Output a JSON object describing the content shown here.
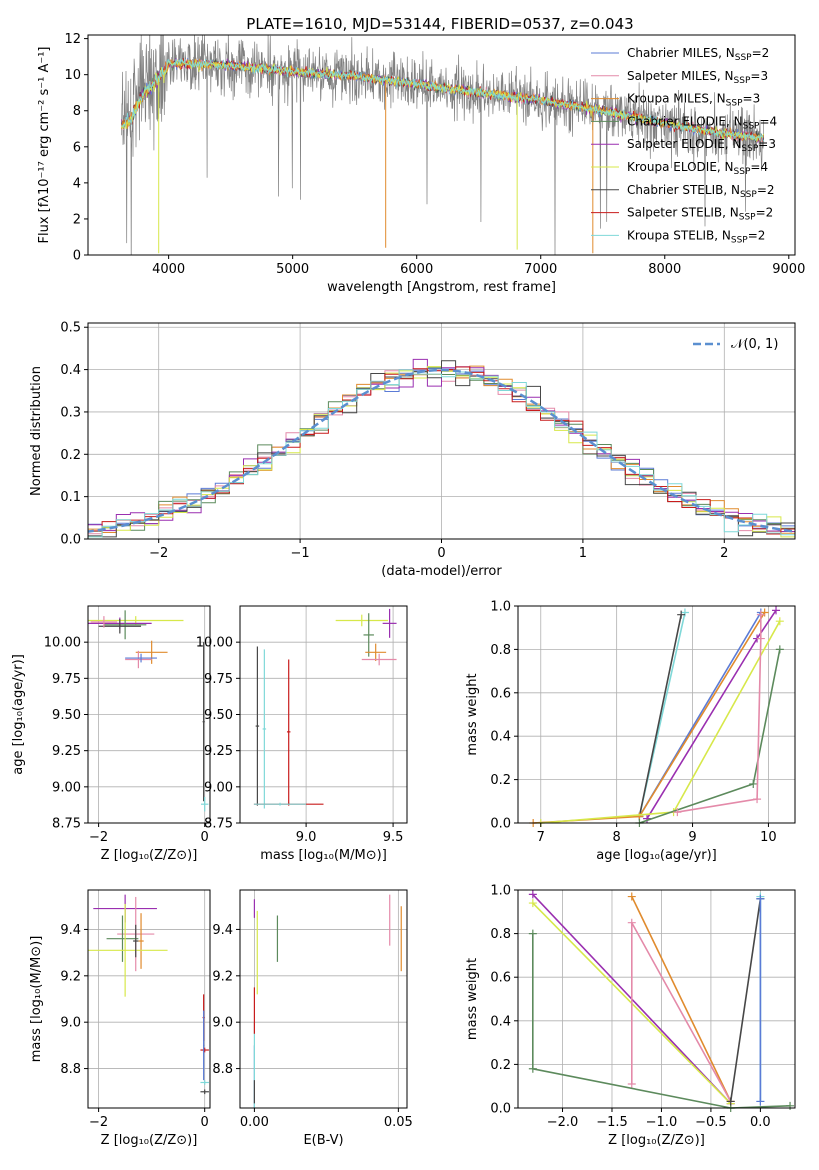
{
  "colors": {
    "chabrier_miles": "#5b7bd6",
    "salpeter_miles": "#e48aa9",
    "kroupa_miles": "#e08b2e",
    "chabrier_elodie": "#5c8a5c",
    "salpeter_elodie": "#9a2fb0",
    "kroupa_elodie": "#d7e84a",
    "chabrier_stelib": "#474747",
    "salpeter_stelib": "#c81c1c",
    "kroupa_stelib": "#7fd8d8",
    "observed": "#808080",
    "grid": "#b0b0b0",
    "normal_curve": "#5b8fd0"
  },
  "chart_data": [
    {
      "id": "spectrum",
      "type": "line",
      "title": "PLATE=1610, MJD=53144, FIBERID=0537, z=0.043",
      "xlabel": "wavelength [Angstrom, rest frame]",
      "ylabel": "Flux [fλ10⁻¹⁷ erg cm⁻² s⁻¹ A⁻¹]",
      "xlim": [
        3350,
        9050
      ],
      "ylim": [
        0,
        12.2
      ],
      "xticks": [
        "4000",
        "5000",
        "6000",
        "7000",
        "8000",
        "9000"
      ],
      "yticks": [
        "0",
        "2",
        "4",
        "6",
        "8",
        "10",
        "12"
      ],
      "legend_position": "right",
      "legend": [
        {
          "model": "Chabrier MILES",
          "nssp": "2"
        },
        {
          "model": "Salpeter MILES",
          "nssp": "3"
        },
        {
          "model": "Kroupa MILES",
          "nssp": "3"
        },
        {
          "model": "Chabrier ELODIE",
          "nssp": "4"
        },
        {
          "model": "Salpeter ELODIE",
          "nssp": "3"
        },
        {
          "model": "Kroupa ELODIE",
          "nssp": "4"
        },
        {
          "model": "Chabrier STELIB",
          "nssp": "2"
        },
        {
          "model": "Salpeter STELIB",
          "nssp": "2"
        },
        {
          "model": "Kroupa STELIB",
          "nssp": "2"
        }
      ],
      "continuum": {
        "x": [
          3620,
          3700,
          3800,
          3900,
          4000,
          4200,
          4500,
          5000,
          5500,
          6000,
          6500,
          7000,
          7500,
          8000,
          8500,
          8800
        ],
        "y": [
          7.2,
          7.6,
          9.0,
          9.6,
          10.6,
          10.6,
          10.5,
          10.2,
          9.9,
          9.5,
          9.0,
          8.6,
          8.0,
          7.3,
          6.7,
          6.5
        ]
      },
      "spikes": [
        {
          "x": 3920,
          "y": 0.1
        },
        {
          "x": 5750,
          "y": 0.4
        },
        {
          "x": 6810,
          "y": 0.3
        },
        {
          "x": 7420,
          "y": 0.1
        }
      ]
    },
    {
      "id": "residuals",
      "type": "line",
      "xlabel": "(data-model)/error",
      "ylabel": "Normed distribution",
      "xlim": [
        -2.5,
        2.5
      ],
      "ylim": [
        0,
        0.51
      ],
      "xticks": [
        "−2",
        "−1",
        "0",
        "1",
        "2"
      ],
      "yticks": [
        "0.0",
        "0.1",
        "0.2",
        "0.3",
        "0.4",
        "0.5"
      ],
      "legend": "𝒩(0, 1)",
      "legend_position": "top-right",
      "bin_width": 0.1
    },
    {
      "id": "age-vs-z",
      "type": "scatter",
      "xlabel": "Z [log₁₀(Z/Z⊙)]",
      "ylabel": "age  [log₁₀(age/yr)]",
      "xlim": [
        -2.2,
        0.1
      ],
      "ylim": [
        8.75,
        10.25
      ],
      "xticks": [
        "−2",
        "0"
      ],
      "yticks": [
        "8.75",
        "9.00",
        "9.25",
        "9.50",
        "9.75",
        "10.00"
      ],
      "points": [
        {
          "s": "kroupa_elodie",
          "x": -1.3,
          "y": 10.15,
          "xe": 0.9,
          "ye": 0.03
        },
        {
          "s": "salpeter_elodie",
          "x": -1.6,
          "y": 10.13,
          "xe": 0.6,
          "ye": 0.04
        },
        {
          "s": "chabrier_elodie",
          "x": -1.5,
          "y": 10.12,
          "xe": 0.4,
          "ye": 0.1
        },
        {
          "s": "chabrier_stelib",
          "x": -1.6,
          "y": 10.11,
          "xe": 0.4,
          "ye": 0.05
        },
        {
          "s": "salpeter_miles",
          "x": -1.9,
          "y": 10.14,
          "xe": 0.25,
          "ye": 0.04
        },
        {
          "s": "kroupa_miles",
          "x": -1.0,
          "y": 9.93,
          "xe": 0.3,
          "ye": 0.08
        },
        {
          "s": "salpeter_miles",
          "x": -1.25,
          "y": 9.88,
          "xe": 0.25,
          "ye": 0.06
        },
        {
          "s": "chabrier_miles",
          "x": -1.2,
          "y": 9.89,
          "xe": 0.3,
          "ye": 0.03
        },
        {
          "s": "chabrier_stelib",
          "x": -0.02,
          "y": 9.45,
          "xe": 0.02,
          "ye": 0.55
        },
        {
          "s": "kroupa_stelib",
          "x": 0.0,
          "y": 8.88,
          "xe": 0.07,
          "ye": 0.05
        }
      ]
    },
    {
      "id": "age-vs-mass",
      "type": "scatter",
      "xlabel": "mass [log₁₀(M/M⊙)]",
      "ylabel": "",
      "xlim": [
        8.62,
        9.58
      ],
      "ylim": [
        8.75,
        10.25
      ],
      "xticks": [
        "9.0",
        "9.5"
      ],
      "yticks": [
        "8.75",
        "9.00",
        "9.25",
        "9.50",
        "9.75",
        "10.00"
      ],
      "points": [
        {
          "s": "kroupa_elodie",
          "x": 9.32,
          "y": 10.15,
          "xe": 0.15,
          "ye": 0.04
        },
        {
          "s": "salpeter_elodie",
          "x": 9.48,
          "y": 10.13,
          "xe": 0.04,
          "ye": 0.1
        },
        {
          "s": "chabrier_elodie",
          "x": 9.36,
          "y": 10.05,
          "xe": 0.03,
          "ye": 0.15
        },
        {
          "s": "kroupa_miles",
          "x": 9.4,
          "y": 9.93,
          "xe": 0.06,
          "ye": 0.06
        },
        {
          "s": "salpeter_miles",
          "x": 9.42,
          "y": 9.88,
          "xe": 0.1,
          "ye": 0.04
        },
        {
          "s": "chabrier_stelib",
          "x": 8.72,
          "y": 9.42,
          "xe": 0.01,
          "ye": 0.55
        },
        {
          "s": "kroupa_stelib",
          "x": 8.76,
          "y": 9.4,
          "xe": 0.01,
          "ye": 0.55
        },
        {
          "s": "salpeter_stelib",
          "x": 8.9,
          "y": 9.38,
          "xe": 0.01,
          "ye": 0.5
        },
        {
          "s": "salpeter_stelib",
          "x": 8.9,
          "y": 8.88,
          "xe": 0.2,
          "ye": 0.01
        },
        {
          "s": "kroupa_stelib",
          "x": 8.85,
          "y": 8.88,
          "xe": 0.15,
          "ye": 0.01
        }
      ]
    },
    {
      "id": "weight-vs-age",
      "type": "line",
      "xlabel": "age  [log₁₀(age/yr)]",
      "ylabel": "mass weight",
      "xlim": [
        6.7,
        10.35
      ],
      "ylim": [
        0,
        1.0
      ],
      "xticks": [
        "7",
        "8",
        "9",
        "10"
      ],
      "yticks": [
        "0.0",
        "0.2",
        "0.4",
        "0.6",
        "0.8",
        "1.0"
      ],
      "series": [
        {
          "s": "kroupa_stelib",
          "x": [
            8.3,
            8.9
          ],
          "y": [
            0.03,
            0.97
          ]
        },
        {
          "s": "chabrier_stelib",
          "x": [
            8.3,
            8.85
          ],
          "y": [
            0.03,
            0.96
          ]
        },
        {
          "s": "chabrier_miles",
          "x": [
            8.3,
            9.9
          ],
          "y": [
            0.03,
            0.97
          ]
        },
        {
          "s": "kroupa_miles",
          "x": [
            6.9,
            8.3,
            9.95
          ],
          "y": [
            0.0,
            0.03,
            0.97
          ]
        },
        {
          "s": "salpeter_elodie",
          "x": [
            8.4,
            9.85,
            10.1
          ],
          "y": [
            0.02,
            0.85,
            0.98
          ]
        },
        {
          "s": "kroupa_elodie",
          "x": [
            7.0,
            8.75,
            10.15
          ],
          "y": [
            0.0,
            0.05,
            0.93
          ]
        },
        {
          "s": "chabrier_elodie",
          "x": [
            8.3,
            9.8,
            10.15
          ],
          "y": [
            0.0,
            0.18,
            0.8
          ]
        },
        {
          "s": "salpeter_miles",
          "x": [
            8.8,
            9.85,
            9.9,
            9.9
          ],
          "y": [
            0.05,
            0.11,
            0.85,
            0.96
          ]
        }
      ]
    },
    {
      "id": "mass-vs-z",
      "type": "scatter",
      "xlabel": "Z [log₁₀(Z/Z⊙)]",
      "ylabel": "mass [log₁₀(M/M⊙)]",
      "xlim": [
        -2.2,
        0.1
      ],
      "ylim": [
        8.63,
        9.57
      ],
      "xticks": [
        "−2",
        "0"
      ],
      "yticks": [
        "8.8",
        "9.0",
        "9.2",
        "9.4"
      ],
      "points": [
        {
          "s": "salpeter_elodie",
          "x": -1.5,
          "y": 9.49,
          "xe": 0.6,
          "ye": 0.06
        },
        {
          "s": "salpeter_miles",
          "x": -1.3,
          "y": 9.38,
          "xe": 0.35,
          "ye": 0.16
        },
        {
          "s": "kroupa_miles",
          "x": -1.2,
          "y": 9.35,
          "xe": 0.05,
          "ye": 0.12
        },
        {
          "s": "chabrier_elodie",
          "x": -1.55,
          "y": 9.36,
          "xe": 0.3,
          "ye": 0.1
        },
        {
          "s": "kroupa_elodie",
          "x": -1.5,
          "y": 9.31,
          "xe": 0.8,
          "ye": 0.2
        },
        {
          "s": "chabrier_stelib",
          "x": -1.3,
          "y": 9.35,
          "xe": 0.05,
          "ye": 0.07
        },
        {
          "s": "salpeter_stelib",
          "x": -0.02,
          "y": 9.02,
          "xe": 0.02,
          "ye": 0.1
        },
        {
          "s": "salpeter_stelib",
          "x": 0.0,
          "y": 8.88,
          "xe": 0.08,
          "ye": 0.01
        },
        {
          "s": "kroupa_stelib",
          "x": 0.0,
          "y": 8.74,
          "xe": 0.08,
          "ye": 0.01
        },
        {
          "s": "chabrier_stelib",
          "x": 0.0,
          "y": 8.7,
          "xe": 0.08,
          "ye": 0.01
        },
        {
          "s": "chabrier_miles",
          "x": -0.02,
          "y": 8.9,
          "xe": 0.01,
          "ye": 0.15
        }
      ]
    },
    {
      "id": "mass-vs-ebv",
      "type": "scatter",
      "xlabel": "E(B-V)",
      "ylabel": "",
      "xlim": [
        -0.005,
        0.053
      ],
      "ylim": [
        8.63,
        9.57
      ],
      "xticks": [
        "0.00",
        "0.05"
      ],
      "yticks": [
        "8.8",
        "9.0",
        "9.2",
        "9.4"
      ],
      "points": [
        {
          "s": "salpeter_elodie",
          "x": 0.0,
          "y": 9.49,
          "xe": 0.0,
          "ye": 0.04
        },
        {
          "s": "kroupa_elodie",
          "x": 0.001,
          "y": 9.3,
          "xe": 0.0,
          "ye": 0.18
        },
        {
          "s": "chabrier_elodie",
          "x": 0.008,
          "y": 9.36,
          "xe": 0.0,
          "ye": 0.1
        },
        {
          "s": "salpeter_miles",
          "x": 0.047,
          "y": 9.44,
          "xe": 0.0,
          "ye": 0.11
        },
        {
          "s": "kroupa_miles",
          "x": 0.051,
          "y": 9.36,
          "xe": 0.0,
          "ye": 0.14
        },
        {
          "s": "chabrier_miles",
          "x": 0.0,
          "y": 8.75,
          "xe": 0.0,
          "ye": 0.15
        },
        {
          "s": "kroupa_stelib",
          "x": 0.0,
          "y": 8.8,
          "xe": 0.0,
          "ye": 0.2
        },
        {
          "s": "salpeter_stelib",
          "x": 0.0,
          "y": 9.05,
          "xe": 0.0,
          "ye": 0.1
        },
        {
          "s": "chabrier_stelib",
          "x": 0.0,
          "y": 8.7,
          "xe": 0.0,
          "ye": 0.05
        }
      ]
    },
    {
      "id": "weight-vs-z",
      "type": "line",
      "xlabel": "Z [log₁₀(Z/Z⊙)]",
      "ylabel": "mass weight",
      "xlim": [
        -2.45,
        0.35
      ],
      "ylim": [
        0,
        1.0
      ],
      "xticks": [
        "−2.0",
        "−1.5",
        "−1.0",
        "−0.5",
        "0.0"
      ],
      "yticks": [
        "0.0",
        "0.2",
        "0.4",
        "0.6",
        "0.8",
        "1.0"
      ],
      "series": [
        {
          "s": "salpeter_elodie",
          "x": [
            -2.3,
            -0.3
          ],
          "y": [
            0.98,
            0.02
          ]
        },
        {
          "s": "kroupa_elodie",
          "x": [
            -2.3,
            -0.3
          ],
          "y": [
            0.94,
            0.02
          ]
        },
        {
          "s": "kroupa_miles",
          "x": [
            -1.3,
            -0.3
          ],
          "y": [
            0.97,
            0.03
          ]
        },
        {
          "s": "salpeter_miles",
          "x": [
            -1.3,
            -1.3,
            -0.3
          ],
          "y": [
            0.11,
            0.85,
            0.03
          ]
        },
        {
          "s": "chabrier_elodie",
          "x": [
            -2.3,
            -2.3,
            -0.3,
            0.3
          ],
          "y": [
            0.8,
            0.18,
            0.0,
            0.01
          ]
        },
        {
          "s": "chabrier_stelib",
          "x": [
            -0.3,
            0.0
          ],
          "y": [
            0.03,
            0.96
          ]
        },
        {
          "s": "kroupa_stelib",
          "x": [
            0.0,
            0.0
          ],
          "y": [
            0.03,
            0.97
          ]
        },
        {
          "s": "chabrier_miles",
          "x": [
            0.0,
            0.0
          ],
          "y": [
            0.03,
            0.96
          ]
        }
      ]
    }
  ]
}
